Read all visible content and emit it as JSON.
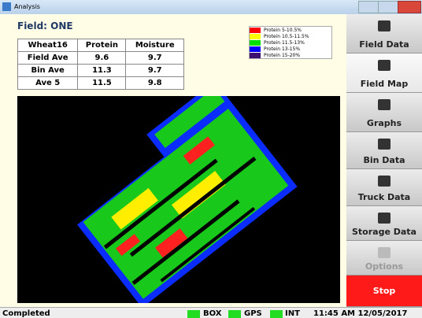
{
  "window": {
    "title": "Analysis"
  },
  "field": {
    "title": "Field: ONE"
  },
  "table": {
    "header": [
      "Wheat16",
      "Protein",
      "Moisture"
    ],
    "rows": [
      [
        "Field Ave",
        "9.6",
        "9.7"
      ],
      [
        "Bin Ave",
        "11.3",
        "9.7"
      ],
      [
        "Ave 5",
        "11.5",
        "9.8"
      ]
    ]
  },
  "legend": [
    {
      "label": "Protein 5-10.5%",
      "color": "#ff0000"
    },
    {
      "label": "Protein 10.5-11.5%",
      "color": "#ffff00"
    },
    {
      "label": "Protein 11.5-13%",
      "color": "#00e000"
    },
    {
      "label": "Protein 13-15%",
      "color": "#0000ff"
    },
    {
      "label": "Protein 15-20%",
      "color": "#3c1070"
    }
  ],
  "sidebar": [
    "Field Data",
    "Field Map",
    "Graphs",
    "Bin Data",
    "Truck Data",
    "Storage Data",
    "Options",
    "Stop"
  ],
  "status": {
    "message": "Completed",
    "indicators": [
      "BOX",
      "GPS",
      "INT"
    ],
    "clock": "11:45 AM 12/05/2017"
  }
}
